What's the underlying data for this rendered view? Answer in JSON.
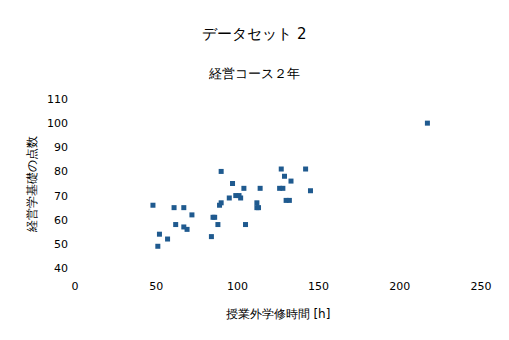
{
  "chart_data": {
    "type": "scatter",
    "title": "データセット 2",
    "subtitle": "経営コース２年",
    "x_label": "授業外学修時間 [h]",
    "y_label": "経営学基礎の点数",
    "x": [
      48,
      51,
      52,
      57,
      61,
      62,
      67,
      67,
      69,
      72,
      84,
      85,
      86,
      88,
      89,
      90,
      90,
      95,
      97,
      99,
      101,
      102,
      104,
      105,
      112,
      112,
      113,
      114,
      126,
      127,
      128,
      129,
      130,
      132,
      133,
      142,
      145,
      217
    ],
    "values": [
      66,
      49,
      54,
      52,
      65,
      58,
      65,
      57,
      56,
      62,
      53,
      61,
      61,
      58,
      66,
      67,
      80,
      69,
      75,
      70,
      70,
      69,
      73,
      58,
      65,
      67,
      65,
      73,
      73,
      81,
      73,
      78,
      68,
      68,
      76,
      81,
      72,
      100
    ],
    "color": "#1f5a8f",
    "marker": "square",
    "xlim": [
      0,
      250
    ],
    "xticks": [
      0,
      50,
      100,
      150,
      200,
      250
    ],
    "ylim": [
      40,
      110
    ],
    "yticks": [
      40,
      50,
      60,
      70,
      80,
      90,
      100,
      110
    ],
    "grid": false
  }
}
